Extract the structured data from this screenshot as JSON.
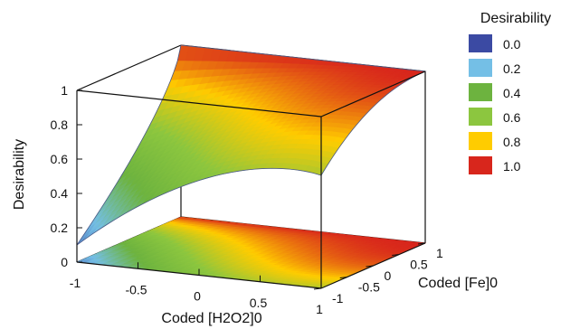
{
  "chart_data": {
    "type": "surface3d",
    "title": "",
    "xlabel": "Coded [H2O2]0",
    "ylabel": "Coded [Fe]0",
    "zlabel": "Desirability",
    "xlim": [
      -1,
      1
    ],
    "ylim": [
      -1,
      1
    ],
    "zlim": [
      0,
      1
    ],
    "x_ticks": [
      "-1",
      "-0.5",
      "0",
      "0.5",
      "1"
    ],
    "y_ticks": [
      "-1",
      "-0.5",
      "0",
      "0.5",
      "1"
    ],
    "z_ticks": [
      "0",
      "0.2",
      "0.4",
      "0.6",
      "0.8",
      "1"
    ],
    "grid": false,
    "contour_projection": true,
    "legend": {
      "title": "Desirability",
      "placement": "right",
      "entries": [
        {
          "label": "0.0",
          "color": "#3b4aa3"
        },
        {
          "label": "0.2",
          "color": "#74bfe6"
        },
        {
          "label": "0.4",
          "color": "#6db33f"
        },
        {
          "label": "0.6",
          "color": "#8cc63f"
        },
        {
          "label": "0.8",
          "color": "#ffcc00"
        },
        {
          "label": "1.0",
          "color": "#d8261c"
        }
      ]
    },
    "surface_samples": {
      "x": [
        -1,
        -0.5,
        0,
        0.5,
        1
      ],
      "y": [
        -1,
        -0.5,
        0,
        0.5,
        1
      ],
      "z": [
        [
          0.1,
          0.28,
          0.44,
          0.56,
          0.62
        ],
        [
          0.3,
          0.47,
          0.62,
          0.73,
          0.78
        ],
        [
          0.45,
          0.62,
          0.76,
          0.86,
          0.91
        ],
        [
          0.55,
          0.72,
          0.86,
          0.95,
          0.98
        ],
        [
          0.6,
          0.77,
          0.91,
          0.99,
          1.0
        ]
      ]
    }
  }
}
